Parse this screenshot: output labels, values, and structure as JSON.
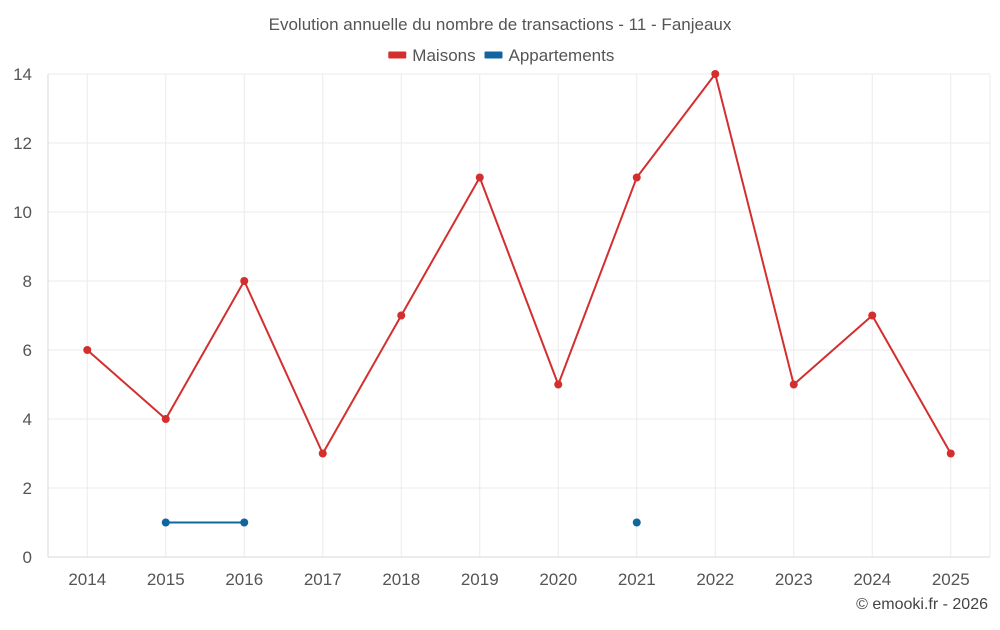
{
  "chart_data": {
    "type": "line",
    "title": "Evolution annuelle du nombre de transactions - 11 - Fanjeaux",
    "xlabel": "",
    "ylabel": "",
    "categories": [
      "2014",
      "2015",
      "2016",
      "2017",
      "2018",
      "2019",
      "2020",
      "2021",
      "2022",
      "2023",
      "2024",
      "2025"
    ],
    "ylim": [
      0,
      14
    ],
    "yticks": [
      0,
      2,
      4,
      6,
      8,
      10,
      12,
      14
    ],
    "grid": true,
    "legend_position": "top-center",
    "series": [
      {
        "name": "Maisons",
        "color": "#d32f2f",
        "values": [
          6,
          4,
          8,
          3,
          7,
          11,
          5,
          11,
          14,
          5,
          7,
          3
        ]
      },
      {
        "name": "Appartements",
        "color": "#0f66a0",
        "values": [
          null,
          1,
          1,
          null,
          null,
          null,
          null,
          1,
          null,
          null,
          null,
          null
        ]
      }
    ]
  },
  "credit": "© emooki.fr - 2026"
}
